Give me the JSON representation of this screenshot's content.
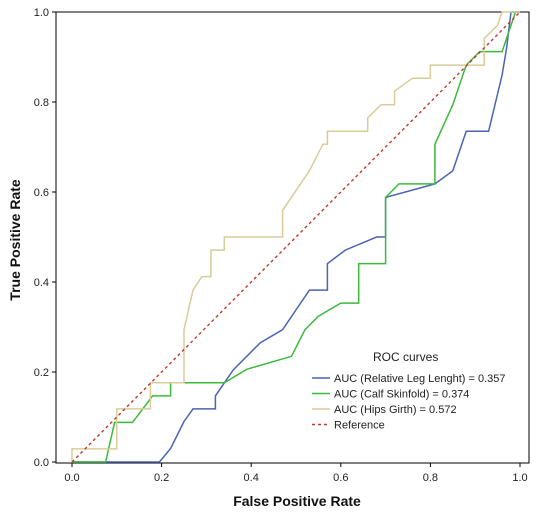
{
  "chart_data": {
    "type": "line",
    "xlabel": "False Positive Rate",
    "ylabel": "True Positive Rate",
    "xlim": [
      0.0,
      1.0
    ],
    "ylim": [
      0.0,
      1.0
    ],
    "xticks": [
      "0.0",
      "0.2",
      "0.4",
      "0.6",
      "0.8",
      "1.0"
    ],
    "yticks": [
      "0.0",
      "0.2",
      "0.4",
      "0.6",
      "0.8",
      "1.0"
    ],
    "grid": false,
    "legend": {
      "title": "ROC curves",
      "placement": "bottom-right"
    },
    "series": [
      {
        "name": "AUC (Relative Leg Lenght) = 0.357",
        "color": "#4a64b4",
        "dash": false,
        "x": [
          0.0,
          0.195,
          0.22,
          0.25,
          0.27,
          0.31,
          0.32,
          0.36,
          0.42,
          0.47,
          0.53,
          0.57,
          0.61,
          0.68,
          0.7,
          0.81,
          0.85,
          0.88,
          0.93,
          0.96,
          0.97,
          0.98,
          1.0
        ],
        "y": [
          0.0,
          0.0,
          0.03,
          0.09,
          0.118,
          0.118,
          0.147,
          0.205,
          0.265,
          0.294,
          0.382,
          0.441,
          0.471,
          0.5,
          0.588,
          0.618,
          0.647,
          0.735,
          0.735,
          0.86,
          0.92,
          1.0,
          1.0
        ],
        "steps": [
          1,
          6,
          11,
          14
        ]
      },
      {
        "name": "AUC (Calf Skinfold) = 0.374",
        "color": "#3cba3c",
        "dash": false,
        "x": [
          0.0,
          0.075,
          0.095,
          0.135,
          0.18,
          0.22,
          0.33,
          0.34,
          0.39,
          0.49,
          0.52,
          0.55,
          0.6,
          0.64,
          0.7,
          0.73,
          0.81,
          0.85,
          0.88,
          0.91,
          0.96,
          0.99,
          1.0
        ],
        "y": [
          0.0,
          0.0,
          0.088,
          0.088,
          0.147,
          0.176,
          0.176,
          0.176,
          0.206,
          0.235,
          0.294,
          0.324,
          0.353,
          0.441,
          0.588,
          0.618,
          0.706,
          0.794,
          0.882,
          0.912,
          0.912,
          1.0,
          1.0
        ],
        "steps": [
          1,
          5,
          7,
          13,
          14,
          16
        ]
      },
      {
        "name": "AUC (Hips Girth) = 0.572",
        "color": "#d8cc9a",
        "dash": false,
        "x": [
          0.0,
          0.0,
          0.08,
          0.1,
          0.175,
          0.25,
          0.27,
          0.29,
          0.31,
          0.34,
          0.41,
          0.47,
          0.51,
          0.53,
          0.56,
          0.57,
          0.59,
          0.66,
          0.69,
          0.72,
          0.76,
          0.8,
          0.89,
          0.92,
          0.95,
          0.96,
          1.0
        ],
        "y": [
          0.0,
          0.029,
          0.029,
          0.118,
          0.176,
          0.294,
          0.382,
          0.412,
          0.471,
          0.5,
          0.5,
          0.559,
          0.618,
          0.647,
          0.706,
          0.735,
          0.735,
          0.765,
          0.794,
          0.824,
          0.853,
          0.882,
          0.882,
          0.941,
          0.971,
          1.0,
          1.0
        ],
        "steps": [
          2,
          3,
          4,
          5,
          8,
          9,
          10,
          11,
          15,
          16,
          17,
          19,
          21,
          23
        ]
      },
      {
        "name": "Reference",
        "color": "#c0392b",
        "dash": true,
        "x": [
          0.0,
          1.0
        ],
        "y": [
          0.0,
          1.0
        ],
        "steps": []
      }
    ]
  }
}
